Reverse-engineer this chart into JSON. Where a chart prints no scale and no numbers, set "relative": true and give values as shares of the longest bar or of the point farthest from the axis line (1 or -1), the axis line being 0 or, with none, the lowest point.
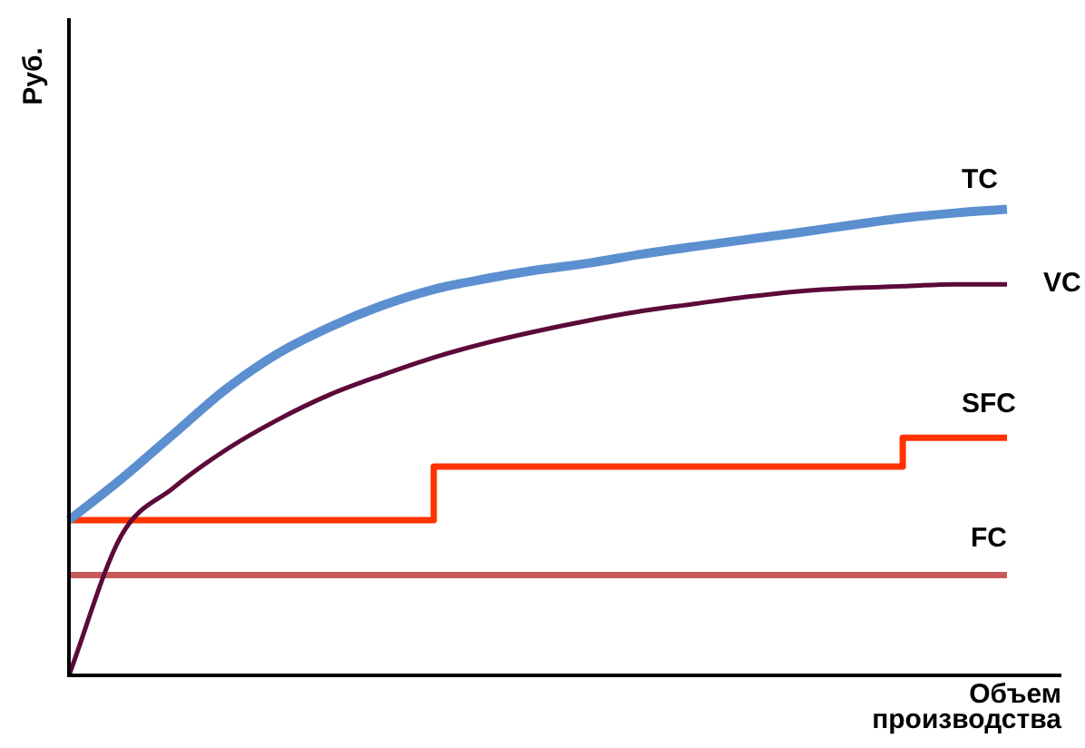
{
  "chart_data": {
    "type": "line",
    "relative": true,
    "ylabel": "Руб.",
    "xlabel": "Объем производства",
    "categories": [
      null,
      null,
      null,
      null,
      null,
      null,
      null,
      null,
      null,
      null,
      null,
      null,
      null,
      null,
      null,
      null,
      null,
      null,
      null
    ],
    "series": [
      {
        "name": "TC",
        "color": "#5b8fd0",
        "values": [
          0.333,
          0.421,
          0.517,
          0.613,
          0.69,
          0.747,
          0.793,
          0.828,
          0.851,
          0.87,
          0.885,
          0.904,
          0.92,
          0.935,
          0.95,
          0.966,
          0.981,
          0.992,
          1
        ]
      },
      {
        "name": "VC",
        "color": "#5c0a3a",
        "values": [
          0,
          0.299,
          0.402,
          0.483,
          0.548,
          0.602,
          0.644,
          0.682,
          0.713,
          0.739,
          0.762,
          0.782,
          0.797,
          0.812,
          0.824,
          0.831,
          0.835,
          0.839,
          0.839
        ]
      },
      {
        "name": "SFC",
        "type": "step",
        "color": "#ff3300",
        "values": [
          0.333,
          0.333,
          0.333,
          0.333,
          0.333,
          0.333,
          0.333,
          0.448,
          0.448,
          0.448,
          0.448,
          0.448,
          0.448,
          0.448,
          0.448,
          0.448,
          0.51,
          0.51,
          0.51
        ]
      },
      {
        "name": "FC",
        "color": "#c85a5a",
        "values": [
          0.215,
          0.215,
          0.215,
          0.215,
          0.215,
          0.215,
          0.215,
          0.215,
          0.215,
          0.215,
          0.215,
          0.215,
          0.215,
          0.215,
          0.215,
          0.215,
          0.215,
          0.215,
          0.215
        ]
      }
    ]
  }
}
